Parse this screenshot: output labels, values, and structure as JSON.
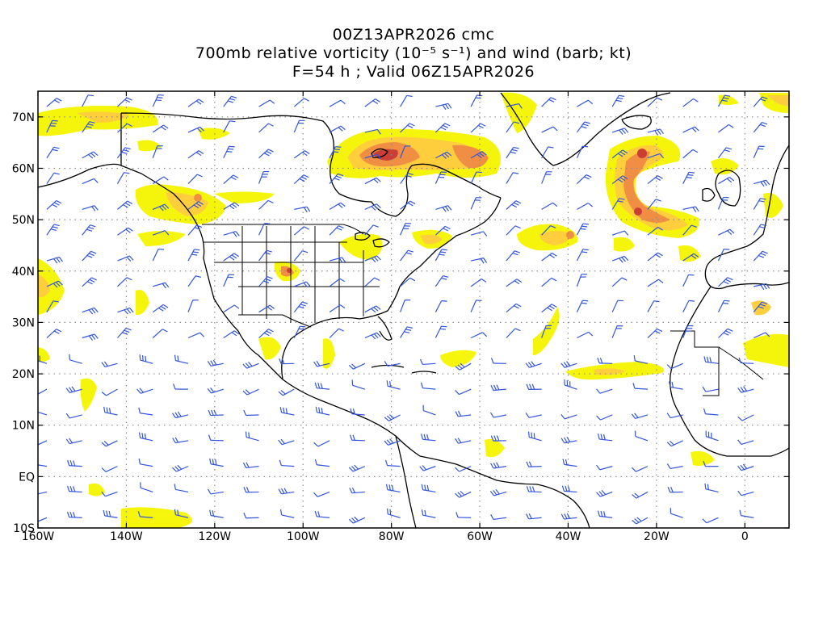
{
  "titles": {
    "line1": "00Z13APR2026 cmc",
    "line2": "700mb relative vorticity (10⁻⁵ s⁻¹) and wind (barb; kt)",
    "line3": "F=54 h ; Valid 06Z15APR2026"
  },
  "axes": {
    "lat_labels": [
      {
        "lat": 70,
        "text": "70N"
      },
      {
        "lat": 60,
        "text": "60N"
      },
      {
        "lat": 50,
        "text": "50N"
      },
      {
        "lat": 40,
        "text": "40N"
      },
      {
        "lat": 30,
        "text": "30N"
      },
      {
        "lat": 20,
        "text": "20N"
      },
      {
        "lat": 10,
        "text": "10N"
      },
      {
        "lat": 0,
        "text": "EQ"
      },
      {
        "lat": -10,
        "text": "10S"
      }
    ],
    "lon_labels": [
      {
        "lon": -160,
        "text": "160W"
      },
      {
        "lon": -140,
        "text": "140W"
      },
      {
        "lon": -120,
        "text": "120W"
      },
      {
        "lon": -100,
        "text": "100W"
      },
      {
        "lon": -80,
        "text": "80W"
      },
      {
        "lon": -60,
        "text": "60W"
      },
      {
        "lon": -40,
        "text": "40W"
      },
      {
        "lon": -20,
        "text": "20W"
      },
      {
        "lon": 0,
        "text": "0"
      }
    ],
    "lon_range": [
      -160,
      10
    ],
    "lat_range": [
      -10,
      75
    ],
    "grid_lons": [
      -140,
      -120,
      -100,
      -80,
      -60,
      -40,
      -20,
      0
    ],
    "grid_lats": [
      70,
      60,
      50,
      40,
      30,
      20,
      10,
      0
    ]
  },
  "colors": {
    "vort_low": "#f5f500",
    "vort_mid": "#ffcc33",
    "vort_high": "#f08a3a",
    "vort_max": "#c8342b",
    "barb": "#3355dd",
    "coast": "#000000",
    "grid": "#8c8c8c"
  }
}
